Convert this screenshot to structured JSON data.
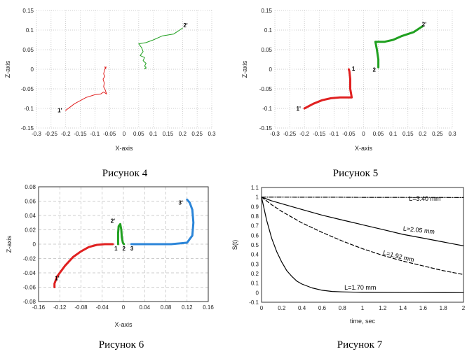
{
  "chart_data": [
    {
      "id": "fig4",
      "type": "line",
      "caption": "Рисунок 4",
      "xlabel": "X-axis",
      "ylabel": "Z-axis",
      "xlim": [
        -0.3,
        0.3
      ],
      "ylim": [
        -0.15,
        0.15
      ],
      "xticks": [
        -0.3,
        -0.25,
        -0.2,
        -0.15,
        -0.1,
        -0.05,
        0,
        0.05,
        0.1,
        0.15,
        0.2,
        0.25,
        0.3
      ],
      "xtick_labels": [
        "-0.3",
        "-0.25",
        "-0.2",
        "-0.15",
        "-0.1",
        "-0.05",
        "0",
        "0.05",
        "0.1",
        "0.15",
        "0.2",
        "0.25",
        "0.3"
      ],
      "yticks": [
        -0.15,
        -0.1,
        -0.05,
        0,
        0.05,
        0.1,
        0.15
      ],
      "ytick_labels": [
        "-0.15",
        "-0.1",
        "-0.05",
        "0",
        "0.05",
        "0.1",
        "0.15"
      ],
      "grid": "dotted",
      "series": [
        {
          "name": "red",
          "color": "#e02020",
          "width": 1,
          "x": [
            -0.2,
            -0.17,
            -0.13,
            -0.1,
            -0.08,
            -0.07,
            -0.06,
            -0.065,
            -0.07,
            -0.068,
            -0.072,
            -0.066,
            -0.07,
            -0.068,
            -0.066,
            -0.064,
            -0.066,
            -0.062,
            -0.064,
            -0.062
          ],
          "y": [
            -0.105,
            -0.088,
            -0.072,
            -0.065,
            -0.063,
            -0.058,
            -0.063,
            -0.052,
            -0.045,
            -0.035,
            -0.025,
            -0.018,
            -0.012,
            -0.005,
            0,
            0.003,
            0.006,
            0.004,
            0.001,
            0.006
          ]
        },
        {
          "name": "green",
          "color": "#20a020",
          "width": 1,
          "x": [
            0.2,
            0.17,
            0.13,
            0.1,
            0.075,
            0.05,
            0.06,
            0.065,
            0.055,
            0.07,
            0.065,
            0.075,
            0.07,
            0.075,
            0.07,
            0.075
          ],
          "y": [
            0.105,
            0.09,
            0.085,
            0.075,
            0.068,
            0.065,
            0.055,
            0.045,
            0.035,
            0.03,
            0.022,
            0.015,
            0.008,
            0.005,
            0.001,
            0.003
          ]
        }
      ],
      "point_labels": [
        {
          "text": "1'",
          "x": -0.22,
          "y": -0.11
        },
        {
          "text": "2'",
          "x": 0.21,
          "y": 0.107
        }
      ]
    },
    {
      "id": "fig5",
      "type": "line",
      "caption": "Рисунок 5",
      "xlabel": "X-axis",
      "ylabel": "Z-axis",
      "xlim": [
        -0.3,
        0.3
      ],
      "ylim": [
        -0.15,
        0.15
      ],
      "xticks": [
        -0.3,
        -0.25,
        -0.2,
        -0.15,
        -0.1,
        -0.05,
        0,
        0.05,
        0.1,
        0.15,
        0.2,
        0.25,
        0.3
      ],
      "xtick_labels": [
        "-0.3",
        "-0.25",
        "-0.2",
        "-0.15",
        "-0.1",
        "-0.05",
        "0",
        "0.05",
        "0.1",
        "0.15",
        "0.2",
        "0.25",
        "0.3"
      ],
      "yticks": [
        -0.15,
        -0.1,
        -0.05,
        0,
        0.05,
        0.1,
        0.15
      ],
      "ytick_labels": [
        "-0.15",
        "-0.1",
        "-0.05",
        "0",
        "0.05",
        "0.1",
        "0.15"
      ],
      "grid": "dotted",
      "series": [
        {
          "name": "red",
          "color": "#e02020",
          "width": 3,
          "x": [
            -0.2,
            -0.17,
            -0.14,
            -0.11,
            -0.08,
            -0.05,
            -0.04,
            -0.045,
            -0.045,
            -0.048,
            -0.05
          ],
          "y": [
            -0.1,
            -0.088,
            -0.079,
            -0.074,
            -0.072,
            -0.072,
            -0.072,
            -0.05,
            -0.025,
            -0.005,
            0
          ]
        },
        {
          "name": "green",
          "color": "#20a020",
          "width": 3,
          "x": [
            0.2,
            0.17,
            0.13,
            0.1,
            0.07,
            0.04,
            0.045,
            0.05,
            0.05
          ],
          "y": [
            0.11,
            0.095,
            0.085,
            0.075,
            0.07,
            0.07,
            0.05,
            0.025,
            0.005
          ]
        }
      ],
      "point_labels": [
        {
          "text": "1'",
          "x": -0.22,
          "y": -0.105
        },
        {
          "text": "2'",
          "x": 0.205,
          "y": 0.11
        },
        {
          "text": "1",
          "x": -0.034,
          "y": -0.004
        },
        {
          "text": "2",
          "x": 0.036,
          "y": -0.006
        }
      ]
    },
    {
      "id": "fig6",
      "type": "line",
      "caption": "Рисунок 6",
      "xlabel": "X-axis",
      "ylabel": "Z-axis",
      "xlim": [
        -0.16,
        0.16
      ],
      "ylim": [
        -0.08,
        0.08
      ],
      "xticks": [
        -0.16,
        -0.12,
        -0.08,
        -0.04,
        0,
        0.04,
        0.08,
        0.12,
        0.16
      ],
      "xtick_labels": [
        "-0.16",
        "-0.12",
        "-0.08",
        "-0.04",
        "0",
        "0.04",
        "0.08",
        "0.12",
        "0.16"
      ],
      "yticks": [
        -0.08,
        -0.06,
        -0.04,
        -0.02,
        0,
        0.02,
        0.04,
        0.06,
        0.08
      ],
      "ytick_labels": [
        "-0.08",
        "-0.06",
        "-0.04",
        "-0.02",
        "0",
        "0.02",
        "0.04",
        "0.06",
        "0.08"
      ],
      "grid": "dashed",
      "series": [
        {
          "name": "red",
          "color": "#e02020",
          "width": 3,
          "x": [
            -0.13,
            -0.13,
            -0.125,
            -0.11,
            -0.095,
            -0.08,
            -0.065,
            -0.05,
            -0.035,
            -0.02
          ],
          "y": [
            -0.06,
            -0.055,
            -0.045,
            -0.03,
            -0.018,
            -0.01,
            -0.004,
            -0.001,
            0,
            0
          ]
        },
        {
          "name": "green",
          "color": "#20a020",
          "width": 3,
          "x": [
            -0.01,
            -0.01,
            -0.009,
            -0.006,
            -0.004,
            -0.003,
            -0.001,
            0.001
          ],
          "y": [
            0,
            0.015,
            0.025,
            0.028,
            0.02,
            0.01,
            0.002,
            0
          ]
        },
        {
          "name": "blue",
          "color": "#2b85d8",
          "width": 3,
          "x": [
            0.015,
            0.05,
            0.09,
            0.12,
            0.13,
            0.132,
            0.13,
            0.125,
            0.12
          ],
          "y": [
            0,
            0,
            0,
            0.002,
            0.012,
            0.03,
            0.048,
            0.058,
            0.062
          ]
        }
      ],
      "point_labels": [
        {
          "text": "1'",
          "x": -0.125,
          "y": -0.05
        },
        {
          "text": "2'",
          "x": -0.02,
          "y": 0.03
        },
        {
          "text": "3'",
          "x": 0.108,
          "y": 0.055
        },
        {
          "text": "1",
          "x": -0.014,
          "y": -0.009
        },
        {
          "text": "2",
          "x": 0.001,
          "y": -0.009
        },
        {
          "text": "3",
          "x": 0.016,
          "y": -0.009
        }
      ]
    },
    {
      "id": "fig7",
      "type": "line",
      "caption": "Рисунок 7",
      "xlabel": "time, sec",
      "ylabel": "S(t)",
      "xlim": [
        0,
        2
      ],
      "ylim": [
        -0.1,
        1.1
      ],
      "xticks": [
        0,
        0.2,
        0.4,
        0.6,
        0.8,
        1,
        1.2,
        1.4,
        1.6,
        1.8,
        2
      ],
      "xtick_labels": [
        "0",
        "0.2",
        "0.4",
        "0.6",
        "0.8",
        "1",
        "1.2",
        "1.4",
        "1.6",
        "1.8",
        "2"
      ],
      "yticks": [
        -0.1,
        0,
        0.1,
        0.2,
        0.3,
        0.4,
        0.5,
        0.6,
        0.7,
        0.8,
        0.9,
        1,
        1.1
      ],
      "ytick_labels": [
        "-0.1",
        "0",
        "0.1",
        "0.2",
        "0.3",
        "0.4",
        "0.5",
        "0.6",
        "0.7",
        "0.8",
        "0.9",
        "1",
        "1.1"
      ],
      "grid": "none",
      "series": [
        {
          "name": "L=3.40 mm",
          "color": "#000000",
          "dash": "dashdot",
          "x": [
            0,
            0.25,
            0.5,
            0.75,
            1,
            1.25,
            1.5,
            1.75,
            2
          ],
          "y": [
            1,
            0.999,
            0.998,
            0.998,
            0.997,
            0.997,
            0.996,
            0.996,
            0.995
          ]
        },
        {
          "name": "L=2.05 mm",
          "color": "#000000",
          "dash": "solid",
          "x": [
            0,
            0.1,
            0.2,
            0.4,
            0.6,
            0.8,
            1,
            1.2,
            1.4,
            1.6,
            1.8,
            2
          ],
          "y": [
            1,
            0.96,
            0.93,
            0.87,
            0.81,
            0.76,
            0.71,
            0.66,
            0.61,
            0.57,
            0.53,
            0.49
          ]
        },
        {
          "name": "L=1.92 mm",
          "color": "#000000",
          "dash": "dashed",
          "x": [
            0,
            0.1,
            0.2,
            0.4,
            0.6,
            0.8,
            1,
            1.2,
            1.4,
            1.6,
            1.8,
            2
          ],
          "y": [
            1,
            0.92,
            0.85,
            0.73,
            0.63,
            0.54,
            0.46,
            0.39,
            0.33,
            0.28,
            0.23,
            0.19
          ]
        },
        {
          "name": "L=1.70 mm",
          "color": "#000000",
          "dash": "solid",
          "x": [
            0,
            0.05,
            0.1,
            0.15,
            0.2,
            0.25,
            0.3,
            0.35,
            0.4,
            0.5,
            0.6,
            0.7,
            0.8,
            1,
            1.5,
            2
          ],
          "y": [
            1,
            0.76,
            0.57,
            0.43,
            0.32,
            0.23,
            0.17,
            0.12,
            0.09,
            0.05,
            0.025,
            0.013,
            0.008,
            0.003,
            0.001,
            0
          ]
        }
      ],
      "annotations": [
        {
          "text": "L=3.40 mm",
          "x": 1.46,
          "y": 0.96,
          "rotate": 0
        },
        {
          "text": "L=2.05 mm",
          "x": 1.4,
          "y": 0.65,
          "rotate": 6
        },
        {
          "text": "L=1.92 mm",
          "x": 1.2,
          "y": 0.4,
          "rotate": 14
        },
        {
          "text": "L=1.70 mm",
          "x": 0.82,
          "y": 0.03,
          "rotate": 0
        }
      ]
    }
  ]
}
